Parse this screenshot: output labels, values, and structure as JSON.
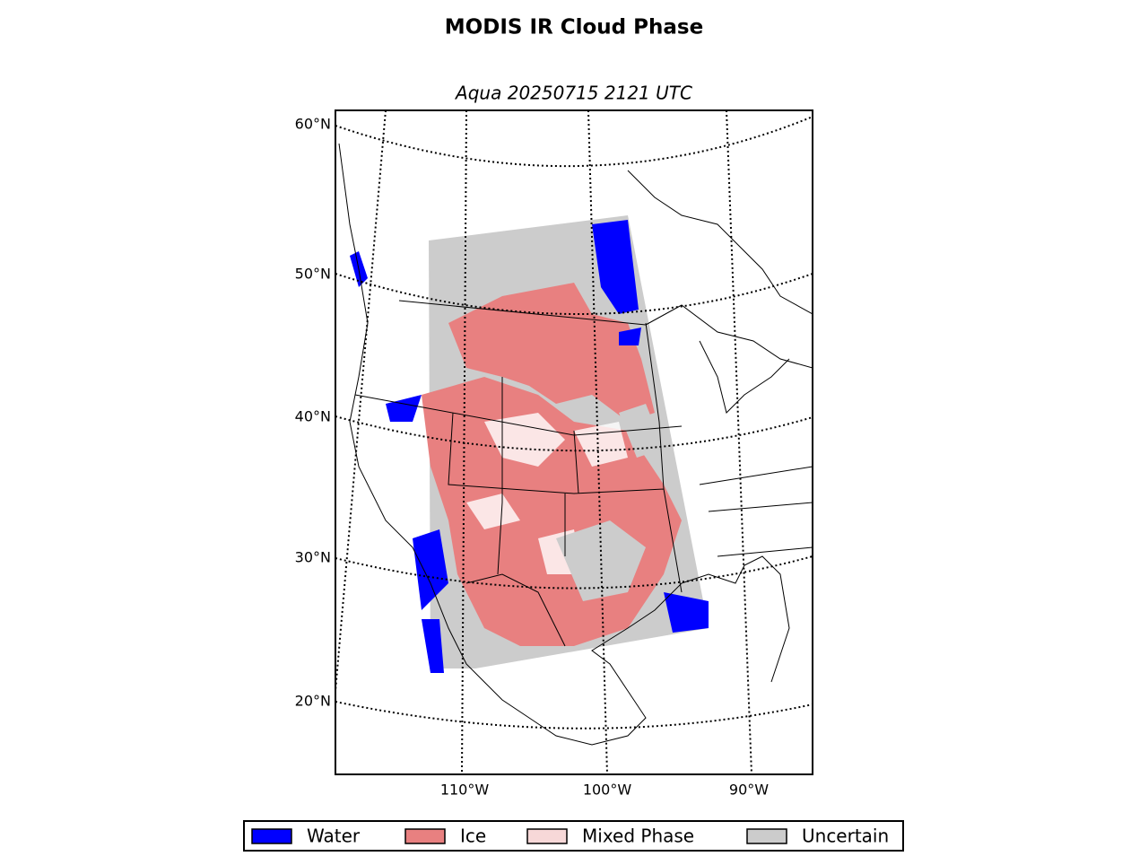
{
  "title": "MODIS IR Cloud Phase",
  "subtitle": "Aqua 20250715 2121 UTC",
  "map": {
    "lat_labels": [
      "60°N",
      "50°N",
      "40°N",
      "30°N",
      "20°N"
    ],
    "lon_labels": [
      "110°W",
      "100°W",
      "90°W"
    ]
  },
  "legend": {
    "items": [
      {
        "label": "Water",
        "color": "#0000ff"
      },
      {
        "label": "Ice",
        "color": "#e88080"
      },
      {
        "label": "Mixed Phase",
        "color": "#f7d8d8"
      },
      {
        "label": "Uncertain",
        "color": "#cccccc"
      }
    ]
  }
}
